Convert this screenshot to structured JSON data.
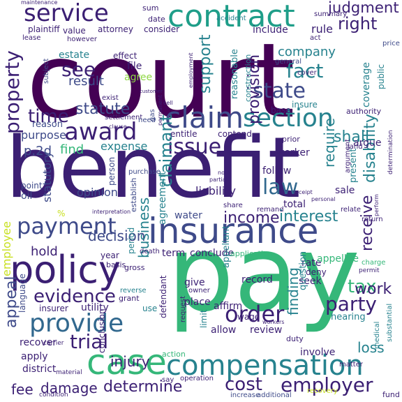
{
  "word_cloud": {
    "palette": {
      "dark_purple": "#440154",
      "indigo": "#3b1f73",
      "blue_violet": "#3e4a89",
      "steel_blue": "#31688e",
      "teal": "#26828e",
      "sea_green": "#1f9e89",
      "green": "#35b779",
      "lime": "#8fd744",
      "yellow": "#c8e020"
    },
    "words": [
      {
        "text": "court",
        "color": "#440154"
      },
      {
        "text": "benefit",
        "color": "#3b1f73"
      },
      {
        "text": "pay",
        "color": "#35b779"
      },
      {
        "text": "insurance",
        "color": "#3e4a89"
      },
      {
        "text": "policy",
        "color": "#3b1f73"
      },
      {
        "text": "case",
        "color": "#35b779"
      },
      {
        "text": "compensation",
        "color": "#26828e"
      },
      {
        "text": "contract",
        "color": "#1f9e89"
      },
      {
        "text": "claim",
        "color": "#3e4a89"
      },
      {
        "text": "section",
        "color": "#26828e"
      },
      {
        "text": "award",
        "color": "#3b1f73"
      },
      {
        "text": "service",
        "color": "#3b1f73"
      },
      {
        "text": "provide",
        "color": "#31688e"
      },
      {
        "text": "payment",
        "color": "#3e4a89"
      },
      {
        "text": "order",
        "color": "#3b1f73"
      },
      {
        "text": "state",
        "color": "#3e4a89"
      },
      {
        "text": "fact",
        "color": "#26828e"
      },
      {
        "text": "evidence",
        "color": "#3b1f73"
      },
      {
        "text": "employer",
        "color": "#3b1f73"
      },
      {
        "text": "law",
        "color": "#31688e"
      },
      {
        "text": "issue",
        "color": "#3b1f73"
      },
      {
        "text": "trial",
        "color": "#3b1f73"
      },
      {
        "text": "party",
        "color": "#3b1f73"
      },
      {
        "text": "determine",
        "color": "#3b1f73"
      },
      {
        "text": "cost",
        "color": "#3b1f73"
      },
      {
        "text": "property",
        "color": "#3b1f73"
      },
      {
        "text": "judgment",
        "color": "#3b1f73"
      },
      {
        "text": "right",
        "color": "#3b1f73"
      },
      {
        "text": "company",
        "color": "#26828e"
      },
      {
        "text": "provision",
        "color": "#3b1f73"
      },
      {
        "text": "disability",
        "color": "#26828e"
      },
      {
        "text": "claimant",
        "color": "#26828e"
      },
      {
        "text": "time",
        "color": "#3b1f73"
      },
      {
        "text": "statute",
        "color": "#3e4a89"
      },
      {
        "text": "see",
        "color": "#3b1f73"
      },
      {
        "text": "result",
        "color": "#3e4a89"
      },
      {
        "text": "support",
        "color": "#26828e"
      },
      {
        "text": "income",
        "color": "#3b1f73"
      },
      {
        "text": "interest",
        "color": "#26828e"
      },
      {
        "text": "decision",
        "color": "#3e4a89"
      },
      {
        "text": "require",
        "color": "#26828e"
      },
      {
        "text": "shall",
        "color": "#26828e"
      },
      {
        "text": "tax",
        "color": "#35b779"
      },
      {
        "text": "finding",
        "color": "#26828e"
      },
      {
        "text": "receive",
        "color": "#3b1f73"
      },
      {
        "text": "work",
        "color": "#3b1f73"
      },
      {
        "text": "injury",
        "color": "#3b1f73"
      },
      {
        "text": "appeal",
        "color": "#3e4a89"
      },
      {
        "text": "damage",
        "color": "#3b1f73"
      },
      {
        "text": "fee",
        "color": "#3b1f73"
      },
      {
        "text": "loss",
        "color": "#26828e"
      },
      {
        "text": "expense",
        "color": "#26828e"
      },
      {
        "text": "find",
        "color": "#35b779"
      },
      {
        "text": "hold",
        "color": "#3b1f73"
      },
      {
        "text": "business",
        "color": "#26828e"
      },
      {
        "text": "liability",
        "color": "#3b1f73"
      },
      {
        "text": "water",
        "color": "#3e4a89"
      },
      {
        "text": "agreement",
        "color": "#26828e"
      },
      {
        "text": "opinion",
        "color": "#3e4a89"
      },
      {
        "text": "statutory",
        "color": "#3e4a89"
      },
      {
        "text": "purpose",
        "color": "#3e4a89"
      },
      {
        "text": "p.2d",
        "color": "#3e4a89"
      },
      {
        "text": "reason",
        "color": "#3e4a89"
      },
      {
        "text": "include",
        "color": "#3b1f73"
      },
      {
        "text": "rule",
        "color": "#3b1f73"
      },
      {
        "text": "estate",
        "color": "#26828e"
      },
      {
        "text": "file",
        "color": "#3b1f73"
      },
      {
        "text": "agree",
        "color": "#8fd744"
      },
      {
        "text": "effect",
        "color": "#3b1f73"
      },
      {
        "text": "value",
        "color": "#3b1f73"
      },
      {
        "text": "attorney",
        "color": "#3b1f73"
      },
      {
        "text": "consider",
        "color": "#3b1f73"
      },
      {
        "text": "plaintiff",
        "color": "#3b1f73"
      },
      {
        "text": "date",
        "color": "#3b1f73"
      },
      {
        "text": "sum",
        "color": "#3b1f73"
      },
      {
        "text": "lease",
        "color": "#3b1f73"
      },
      {
        "text": "however",
        "color": "#3b1f73"
      },
      {
        "text": "reasonable",
        "color": "#26828e"
      },
      {
        "text": "construction",
        "color": "#26828e"
      },
      {
        "text": "coverage",
        "color": "#26828e"
      },
      {
        "text": "public",
        "color": "#26828e"
      },
      {
        "text": "insure",
        "color": "#26828e"
      },
      {
        "text": "entitle",
        "color": "#3b1f73"
      },
      {
        "text": "contend",
        "color": "#3b1f73"
      },
      {
        "text": "base",
        "color": "#3b1f73"
      },
      {
        "text": "worker",
        "color": "#3b1f73"
      },
      {
        "text": "argue",
        "color": "#3b1f73"
      },
      {
        "text": "follow",
        "color": "#3b1f73"
      },
      {
        "text": "sale",
        "color": "#3b1f73"
      },
      {
        "text": "total",
        "color": "#3b1f73"
      },
      {
        "text": "present",
        "color": "#26828e"
      },
      {
        "text": "term",
        "color": "#3b1f73"
      },
      {
        "text": "conclude",
        "color": "#3b1f73"
      },
      {
        "text": "rate",
        "color": "#3b1f73"
      },
      {
        "text": "deny",
        "color": "#3b1f73"
      },
      {
        "text": "record",
        "color": "#3b1f73"
      },
      {
        "text": "seek",
        "color": "#3b1f73"
      },
      {
        "text": "appellee",
        "color": "#35b779"
      },
      {
        "text": "appellant",
        "color": "#26828e"
      },
      {
        "text": "year",
        "color": "#3b1f73"
      },
      {
        "text": "period",
        "color": "#26828e"
      },
      {
        "text": "give",
        "color": "#3b1f73"
      },
      {
        "text": "place",
        "color": "#3b1f73"
      },
      {
        "text": "affirm",
        "color": "#3b1f73"
      },
      {
        "text": "question",
        "color": "#26828e"
      },
      {
        "text": "allow",
        "color": "#3b1f73"
      },
      {
        "text": "review",
        "color": "#3b1f73"
      },
      {
        "text": "hearing",
        "color": "#26828e"
      },
      {
        "text": "involve",
        "color": "#3b1f73"
      },
      {
        "text": "recover",
        "color": "#3b1f73"
      },
      {
        "text": "apply",
        "color": "#3b1f73"
      },
      {
        "text": "district",
        "color": "#3b1f73"
      },
      {
        "text": "insurer",
        "color": "#3b1f73"
      },
      {
        "text": "utility",
        "color": "#3b1f73"
      },
      {
        "text": "language",
        "color": "#3e4a89"
      },
      {
        "text": "conclusion",
        "color": "#3b1f73"
      },
      {
        "text": "employee",
        "color": "#c8e020"
      },
      {
        "text": "oil",
        "color": "#3e4a89"
      },
      {
        "text": "point",
        "color": "#3e4a89"
      },
      {
        "text": "person",
        "color": "#3e4a89"
      },
      {
        "text": "establish",
        "color": "#3e4a89"
      },
      {
        "text": "limit",
        "color": "#26828e"
      },
      {
        "text": "defendant",
        "color": "#3b1f73"
      },
      {
        "text": "wage",
        "color": "#3b1f73"
      },
      {
        "text": "use",
        "color": "#26828e"
      },
      {
        "text": "grant",
        "color": "#3b1f73"
      },
      {
        "text": "action",
        "color": "#35b779"
      },
      {
        "text": "duty",
        "color": "#3b1f73"
      },
      {
        "text": "fund",
        "color": "#3b1f73"
      },
      {
        "text": "additional",
        "color": "#3e4a89"
      },
      {
        "text": "increase",
        "color": "#3e4a89"
      },
      {
        "text": "recovery",
        "color": "#c8e020"
      },
      {
        "text": "gross",
        "color": "#3b1f73"
      },
      {
        "text": "basis",
        "color": "#3b1f73"
      },
      {
        "text": "death",
        "color": "#3b1f73"
      },
      {
        "text": "application",
        "color": "#35b779"
      },
      {
        "text": "accident",
        "color": "#26828e"
      },
      {
        "text": "summary",
        "color": "#3b1f73"
      },
      {
        "text": "price",
        "color": "#3e4a89"
      },
      {
        "text": "cover",
        "color": "#3b1f73"
      },
      {
        "text": "general",
        "color": "#3e4a89"
      },
      {
        "text": "act",
        "color": "#3b1f73"
      },
      {
        "text": "authority",
        "color": "#3b1f73"
      },
      {
        "text": "prior",
        "color": "#3b1f73"
      },
      {
        "text": "land",
        "color": "#3b1f73"
      },
      {
        "text": "exist",
        "color": "#3b1f73"
      },
      {
        "text": "settlement",
        "color": "#3b1f73"
      },
      {
        "text": "subject",
        "color": "#3e4a89"
      },
      {
        "text": "enter",
        "color": "#3b1f73"
      },
      {
        "text": "purchase",
        "color": "#3e4a89"
      },
      {
        "text": "need",
        "color": "#3e4a89"
      },
      {
        "text": "gas",
        "color": "#3e4a89"
      },
      {
        "text": "relate",
        "color": "#3b1f73"
      },
      {
        "text": "return",
        "color": "#3b1f73"
      },
      {
        "text": "share",
        "color": "#3b1f73"
      },
      {
        "text": "remand",
        "color": "#3b1f73"
      },
      {
        "text": "argument",
        "color": "#3b1f73"
      },
      {
        "text": "charge",
        "color": "#35b779"
      },
      {
        "text": "owner",
        "color": "#3b1f73"
      },
      {
        "text": "request",
        "color": "#3b1f73"
      },
      {
        "text": "matter",
        "color": "#3b1f73"
      },
      {
        "text": "say",
        "color": "#3b1f73"
      },
      {
        "text": "operation",
        "color": "#3b1f73"
      },
      {
        "text": "material",
        "color": "#3b1f73"
      },
      {
        "text": "condition",
        "color": "#3b1f73"
      },
      {
        "text": "carrier",
        "color": "#3b1f73"
      },
      {
        "text": "reverse",
        "color": "#26828e"
      },
      {
        "text": "medical",
        "color": "#26828e"
      },
      {
        "text": "substantial",
        "color": "#26828e"
      },
      {
        "text": "permit",
        "color": "#3b1f73"
      },
      {
        "text": "determination",
        "color": "#3b1f73"
      },
      {
        "text": "maintenance",
        "color": "#3b1f73"
      },
      {
        "text": "customer",
        "color": "#3b1f73"
      },
      {
        "text": "employment",
        "color": "#3b1f73"
      },
      {
        "text": "cell",
        "color": "#3b1f73"
      },
      {
        "text": "permanent",
        "color": "#3b1f73"
      },
      {
        "text": "clause",
        "color": "#3b1f73"
      },
      {
        "text": "interpretation",
        "color": "#3b1f73"
      },
      {
        "text": "perform",
        "color": "#3b1f73"
      },
      {
        "text": "receipt",
        "color": "#3b1f73"
      },
      {
        "text": "personal",
        "color": "#3b1f73"
      },
      {
        "text": "workers",
        "color": "#3b1f73"
      },
      {
        "text": "partial",
        "color": "#3b1f73"
      },
      {
        "text": "note",
        "color": "#3b1f73"
      },
      {
        "text": "%",
        "color": "#c8e020"
      }
    ]
  }
}
